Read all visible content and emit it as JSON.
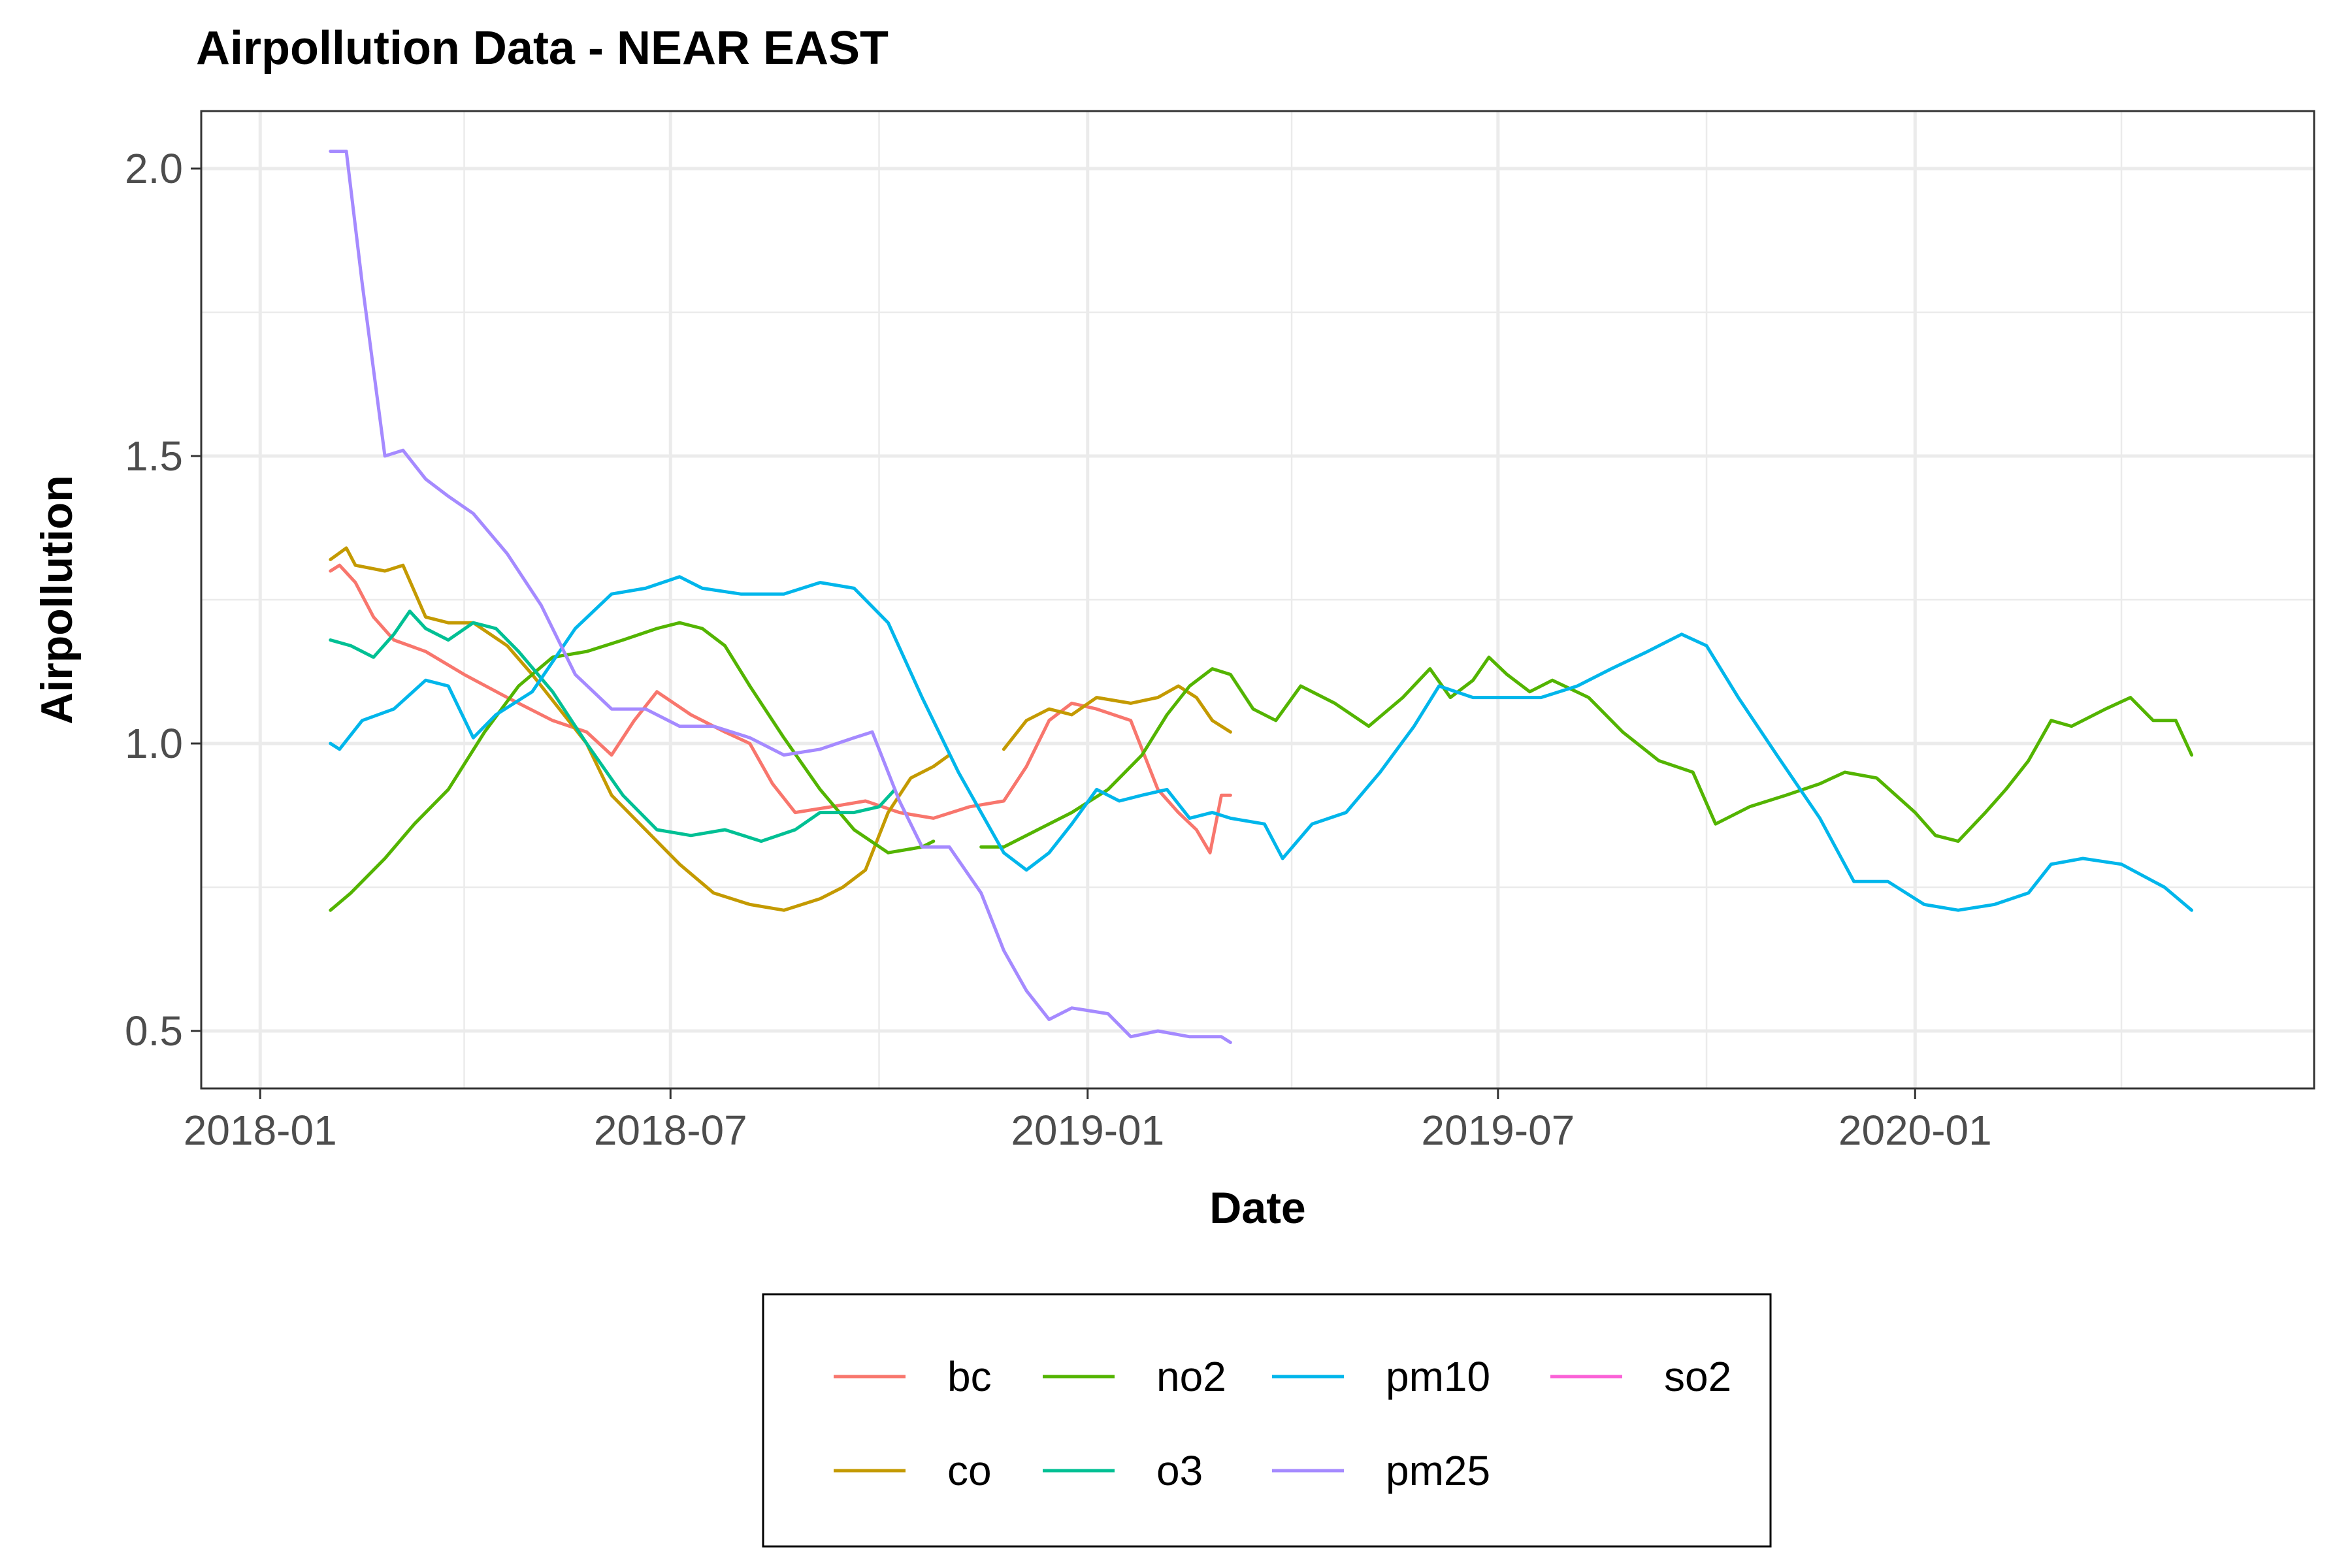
{
  "chart_data": {
    "type": "line",
    "title": "Airpollution Data - NEAR EAST",
    "xlabel": "Date",
    "ylabel": "Airpollution",
    "x_ticks": [
      "2018-01",
      "2018-07",
      "2019-01",
      "2019-07",
      "2020-01"
    ],
    "y_ticks": [
      "0.5",
      "1.0",
      "1.5",
      "2.0"
    ],
    "xlim": [
      "2017-12-06",
      "2020-06-25"
    ],
    "ylim": [
      0.4,
      2.1
    ],
    "grid": true,
    "legend_position": "bottom",
    "series": [
      {
        "name": "bc",
        "color": "#F8766D",
        "points": [
          [
            "2018-02-01",
            1.3
          ],
          [
            "2018-02-05",
            1.31
          ],
          [
            "2018-02-12",
            1.28
          ],
          [
            "2018-02-20",
            1.22
          ],
          [
            "2018-03-01",
            1.18
          ],
          [
            "2018-03-15",
            1.16
          ],
          [
            "2018-04-01",
            1.12
          ],
          [
            "2018-04-20",
            1.08
          ],
          [
            "2018-05-10",
            1.04
          ],
          [
            "2018-05-25",
            1.02
          ],
          [
            "2018-06-05",
            0.98
          ],
          [
            "2018-06-15",
            1.04
          ],
          [
            "2018-06-25",
            1.09
          ],
          [
            "2018-07-10",
            1.05
          ],
          [
            "2018-07-25",
            1.02
          ],
          [
            "2018-08-05",
            1.0
          ],
          [
            "2018-08-15",
            0.93
          ],
          [
            "2018-08-25",
            0.88
          ],
          [
            "2018-09-10",
            0.89
          ],
          [
            "2018-09-25",
            0.9
          ],
          [
            "2018-10-10",
            0.88
          ],
          [
            "2018-10-25",
            0.87
          ],
          [
            "2018-11-10",
            0.89
          ],
          [
            "2018-11-25",
            0.9
          ],
          [
            "2018-12-05",
            0.96
          ],
          [
            "2018-12-15",
            1.04
          ],
          [
            "2018-12-25",
            1.07
          ],
          [
            "2019-01-05",
            1.06
          ],
          [
            "2019-01-20",
            1.04
          ],
          [
            "2019-02-01",
            0.92
          ],
          [
            "2019-02-10",
            0.88
          ],
          [
            "2019-02-18",
            0.85
          ],
          [
            "2019-02-24",
            0.81
          ],
          [
            "2019-03-01",
            0.91
          ],
          [
            "2019-03-05",
            0.91
          ]
        ]
      },
      {
        "name": "co",
        "color": "#C49A00",
        "points": [
          [
            "2018-02-01",
            1.32
          ],
          [
            "2018-02-08",
            1.34
          ],
          [
            "2018-02-12",
            1.31
          ],
          [
            "2018-02-25",
            1.3
          ],
          [
            "2018-03-05",
            1.31
          ],
          [
            "2018-03-15",
            1.22
          ],
          [
            "2018-03-25",
            1.21
          ],
          [
            "2018-04-05",
            1.21
          ],
          [
            "2018-04-20",
            1.17
          ],
          [
            "2018-05-01",
            1.12
          ],
          [
            "2018-05-15",
            1.05
          ],
          [
            "2018-05-25",
            1.0
          ],
          [
            "2018-06-05",
            0.91
          ],
          [
            "2018-06-20",
            0.85
          ],
          [
            "2018-07-05",
            0.79
          ],
          [
            "2018-07-20",
            0.74
          ],
          [
            "2018-08-05",
            0.72
          ],
          [
            "2018-08-20",
            0.71
          ],
          [
            "2018-09-05",
            0.73
          ],
          [
            "2018-09-15",
            0.75
          ],
          [
            "2018-09-25",
            0.78
          ],
          [
            "2018-10-05",
            0.88
          ],
          [
            "2018-10-15",
            0.94
          ],
          [
            "2018-10-25",
            0.96
          ],
          [
            "2018-11-01",
            0.98
          ],
          null,
          [
            "2018-11-25",
            0.99
          ],
          [
            "2018-12-05",
            1.04
          ],
          [
            "2018-12-15",
            1.06
          ],
          [
            "2018-12-25",
            1.05
          ],
          [
            "2019-01-05",
            1.08
          ],
          [
            "2019-01-20",
            1.07
          ],
          [
            "2019-02-01",
            1.08
          ],
          [
            "2019-02-10",
            1.1
          ],
          [
            "2019-02-18",
            1.08
          ],
          [
            "2019-02-25",
            1.04
          ],
          [
            "2019-03-05",
            1.02
          ]
        ]
      },
      {
        "name": "no2",
        "color": "#53B400",
        "points": [
          [
            "2018-02-01",
            0.71
          ],
          [
            "2018-02-10",
            0.74
          ],
          [
            "2018-02-25",
            0.8
          ],
          [
            "2018-03-10",
            0.86
          ],
          [
            "2018-03-25",
            0.92
          ],
          [
            "2018-04-10",
            1.02
          ],
          [
            "2018-04-25",
            1.1
          ],
          [
            "2018-05-10",
            1.15
          ],
          [
            "2018-05-25",
            1.16
          ],
          [
            "2018-06-10",
            1.18
          ],
          [
            "2018-06-25",
            1.2
          ],
          [
            "2018-07-05",
            1.21
          ],
          [
            "2018-07-15",
            1.2
          ],
          [
            "2018-07-25",
            1.17
          ],
          [
            "2018-08-05",
            1.1
          ],
          [
            "2018-08-20",
            1.01
          ],
          [
            "2018-09-05",
            0.92
          ],
          [
            "2018-09-20",
            0.85
          ],
          [
            "2018-10-05",
            0.81
          ],
          [
            "2018-10-20",
            0.82
          ],
          [
            "2018-10-25",
            0.83
          ],
          null,
          [
            "2018-11-15",
            0.82
          ],
          [
            "2018-11-25",
            0.82
          ],
          [
            "2018-12-10",
            0.85
          ],
          [
            "2018-12-25",
            0.88
          ],
          [
            "2019-01-10",
            0.92
          ],
          [
            "2019-01-25",
            0.98
          ],
          [
            "2019-02-05",
            1.05
          ],
          [
            "2019-02-15",
            1.1
          ],
          [
            "2019-02-25",
            1.13
          ],
          [
            "2019-03-05",
            1.12
          ],
          [
            "2019-03-15",
            1.06
          ],
          [
            "2019-03-25",
            1.04
          ],
          [
            "2019-04-05",
            1.1
          ],
          [
            "2019-04-20",
            1.07
          ],
          [
            "2019-05-05",
            1.03
          ],
          [
            "2019-05-20",
            1.08
          ],
          [
            "2019-06-01",
            1.13
          ],
          [
            "2019-06-10",
            1.08
          ],
          [
            "2019-06-20",
            1.11
          ],
          [
            "2019-06-27",
            1.15
          ],
          [
            "2019-07-05",
            1.12
          ],
          [
            "2019-07-15",
            1.09
          ],
          [
            "2019-07-25",
            1.11
          ],
          [
            "2019-08-10",
            1.08
          ],
          [
            "2019-08-25",
            1.02
          ],
          [
            "2019-09-10",
            0.97
          ],
          [
            "2019-09-25",
            0.95
          ],
          [
            "2019-10-05",
            0.86
          ],
          [
            "2019-10-20",
            0.89
          ],
          [
            "2019-11-05",
            0.91
          ],
          [
            "2019-11-20",
            0.93
          ],
          [
            "2019-12-01",
            0.95
          ],
          [
            "2019-12-15",
            0.94
          ],
          [
            "2020-01-01",
            0.88
          ],
          [
            "2020-01-10",
            0.84
          ],
          [
            "2020-01-20",
            0.83
          ],
          [
            "2020-02-01",
            0.88
          ],
          [
            "2020-02-10",
            0.92
          ],
          [
            "2020-02-20",
            0.97
          ],
          [
            "2020-03-01",
            1.04
          ],
          [
            "2020-03-10",
            1.03
          ],
          [
            "2020-03-25",
            1.06
          ],
          [
            "2020-04-05",
            1.08
          ],
          [
            "2020-04-15",
            1.04
          ],
          [
            "2020-04-25",
            1.04
          ],
          [
            "2020-05-02",
            0.98
          ]
        ]
      },
      {
        "name": "o3",
        "color": "#00C094",
        "points": [
          [
            "2018-02-01",
            1.18
          ],
          [
            "2018-02-10",
            1.17
          ],
          [
            "2018-02-20",
            1.15
          ],
          [
            "2018-03-01",
            1.19
          ],
          [
            "2018-03-08",
            1.23
          ],
          [
            "2018-03-15",
            1.2
          ],
          [
            "2018-03-25",
            1.18
          ],
          [
            "2018-04-05",
            1.21
          ],
          [
            "2018-04-15",
            1.2
          ],
          [
            "2018-04-25",
            1.16
          ],
          [
            "2018-05-10",
            1.09
          ],
          [
            "2018-05-25",
            1.0
          ],
          [
            "2018-06-10",
            0.91
          ],
          [
            "2018-06-25",
            0.85
          ],
          [
            "2018-07-10",
            0.84
          ],
          [
            "2018-07-25",
            0.85
          ],
          [
            "2018-08-10",
            0.83
          ],
          [
            "2018-08-25",
            0.85
          ],
          [
            "2018-09-05",
            0.88
          ],
          [
            "2018-09-20",
            0.88
          ],
          [
            "2018-10-01",
            0.89
          ],
          [
            "2018-10-08",
            0.92
          ]
        ]
      },
      {
        "name": "pm10",
        "color": "#00B6EB",
        "points": [
          [
            "2018-02-01",
            1.0
          ],
          [
            "2018-02-05",
            0.99
          ],
          [
            "2018-02-15",
            1.04
          ],
          [
            "2018-03-01",
            1.06
          ],
          [
            "2018-03-15",
            1.11
          ],
          [
            "2018-03-25",
            1.1
          ],
          [
            "2018-04-05",
            1.01
          ],
          [
            "2018-04-15",
            1.05
          ],
          [
            "2018-05-01",
            1.09
          ],
          [
            "2018-05-20",
            1.2
          ],
          [
            "2018-06-05",
            1.26
          ],
          [
            "2018-06-20",
            1.27
          ],
          [
            "2018-07-05",
            1.29
          ],
          [
            "2018-07-15",
            1.27
          ],
          [
            "2018-08-01",
            1.26
          ],
          [
            "2018-08-20",
            1.26
          ],
          [
            "2018-09-05",
            1.28
          ],
          [
            "2018-09-20",
            1.27
          ],
          [
            "2018-10-05",
            1.21
          ],
          [
            "2018-10-20",
            1.08
          ],
          [
            "2018-11-05",
            0.95
          ],
          [
            "2018-11-15",
            0.88
          ],
          [
            "2018-11-25",
            0.81
          ],
          [
            "2018-12-05",
            0.78
          ],
          [
            "2018-12-15",
            0.81
          ],
          [
            "2018-12-25",
            0.86
          ],
          [
            "2019-01-05",
            0.92
          ],
          [
            "2019-01-15",
            0.9
          ],
          [
            "2019-01-25",
            0.91
          ],
          [
            "2019-02-05",
            0.92
          ],
          [
            "2019-02-15",
            0.87
          ],
          [
            "2019-02-25",
            0.88
          ],
          [
            "2019-03-05",
            0.87
          ],
          [
            "2019-03-20",
            0.86
          ],
          [
            "2019-03-28",
            0.8
          ],
          [
            "2019-04-10",
            0.86
          ],
          [
            "2019-04-25",
            0.88
          ],
          [
            "2019-05-10",
            0.95
          ],
          [
            "2019-05-25",
            1.03
          ],
          [
            "2019-06-05",
            1.1
          ],
          [
            "2019-06-20",
            1.08
          ],
          [
            "2019-07-05",
            1.08
          ],
          [
            "2019-07-20",
            1.08
          ],
          [
            "2019-08-05",
            1.1
          ],
          [
            "2019-08-20",
            1.13
          ],
          [
            "2019-09-05",
            1.16
          ],
          [
            "2019-09-20",
            1.19
          ],
          [
            "2019-10-01",
            1.17
          ],
          [
            "2019-10-15",
            1.08
          ],
          [
            "2019-11-01",
            0.98
          ],
          [
            "2019-11-20",
            0.87
          ],
          [
            "2019-12-05",
            0.76
          ],
          [
            "2019-12-20",
            0.76
          ],
          [
            "2020-01-05",
            0.72
          ],
          [
            "2020-01-20",
            0.71
          ],
          [
            "2020-02-05",
            0.72
          ],
          [
            "2020-02-20",
            0.74
          ],
          [
            "2020-03-01",
            0.79
          ],
          [
            "2020-03-15",
            0.8
          ],
          [
            "2020-04-01",
            0.79
          ],
          [
            "2020-04-20",
            0.75
          ],
          [
            "2020-05-02",
            0.71
          ]
        ]
      },
      {
        "name": "pm25",
        "color": "#A58AFF",
        "points": [
          [
            "2018-02-01",
            2.03
          ],
          [
            "2018-02-08",
            2.03
          ],
          [
            "2018-02-15",
            1.8
          ],
          [
            "2018-02-25",
            1.5
          ],
          [
            "2018-03-05",
            1.51
          ],
          [
            "2018-03-15",
            1.46
          ],
          [
            "2018-03-25",
            1.43
          ],
          [
            "2018-04-05",
            1.4
          ],
          [
            "2018-04-20",
            1.33
          ],
          [
            "2018-05-05",
            1.24
          ],
          [
            "2018-05-20",
            1.12
          ],
          [
            "2018-06-05",
            1.06
          ],
          [
            "2018-06-20",
            1.06
          ],
          [
            "2018-07-05",
            1.03
          ],
          [
            "2018-07-20",
            1.03
          ],
          [
            "2018-08-05",
            1.01
          ],
          [
            "2018-08-20",
            0.98
          ],
          [
            "2018-09-05",
            0.99
          ],
          [
            "2018-09-20",
            1.01
          ],
          [
            "2018-09-28",
            1.02
          ],
          [
            "2018-10-10",
            0.9
          ],
          [
            "2018-10-20",
            0.82
          ],
          [
            "2018-11-01",
            0.82
          ],
          [
            "2018-11-15",
            0.74
          ],
          [
            "2018-11-25",
            0.64
          ],
          [
            "2018-12-05",
            0.57
          ],
          [
            "2018-12-15",
            0.52
          ],
          [
            "2018-12-25",
            0.54
          ],
          [
            "2019-01-10",
            0.53
          ],
          [
            "2019-01-20",
            0.49
          ],
          [
            "2019-02-01",
            0.5
          ],
          [
            "2019-02-15",
            0.49
          ],
          [
            "2019-03-01",
            0.49
          ],
          [
            "2019-03-05",
            0.48
          ]
        ]
      },
      {
        "name": "so2",
        "color": "#FB61D7",
        "points": []
      }
    ],
    "legend_rows": [
      [
        "bc",
        "no2",
        "pm10",
        "so2"
      ],
      [
        "co",
        "o3",
        "pm25"
      ]
    ]
  }
}
